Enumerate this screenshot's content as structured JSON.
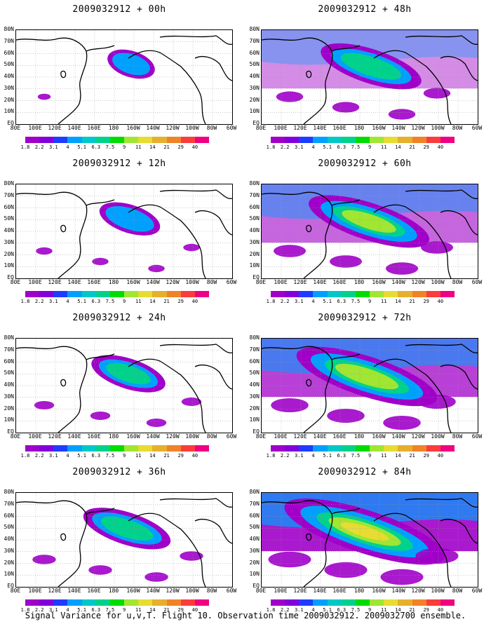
{
  "lat_labels": [
    "80N",
    "70N",
    "60N",
    "50N",
    "40N",
    "30N",
    "20N",
    "10N",
    "EQ"
  ],
  "lon_labels": [
    "80E",
    "100E",
    "120E",
    "140E",
    "160E",
    "180",
    "160W",
    "140W",
    "120W",
    "100W",
    "80W",
    "60W"
  ],
  "colorbar": {
    "levels": [
      "1.8",
      "2.2",
      "3.1",
      "4",
      "5.1",
      "6.3",
      "7.5",
      "9",
      "11",
      "14",
      "21",
      "29",
      "40"
    ],
    "colors": [
      "#a000c8",
      "#8200dc",
      "#1e3cff",
      "#00a0ff",
      "#00c8c8",
      "#00d28c",
      "#00dc00",
      "#a0e632",
      "#e6dc32",
      "#e6af2d",
      "#f08228",
      "#fa3c3c",
      "#f00082"
    ]
  },
  "panels": [
    {
      "title": "2009032912 + 00h",
      "intensity": 0.05
    },
    {
      "title": "2009032912 + 48h",
      "intensity": 0.45
    },
    {
      "title": "2009032912 + 12h",
      "intensity": 0.15
    },
    {
      "title": "2009032912 + 60h",
      "intensity": 0.6
    },
    {
      "title": "2009032912 + 24h",
      "intensity": 0.25
    },
    {
      "title": "2009032912 + 72h",
      "intensity": 0.75
    },
    {
      "title": "2009032912 + 36h",
      "intensity": 0.35
    },
    {
      "title": "2009032912 + 84h",
      "intensity": 0.9
    }
  ],
  "caption": "Signal Variance for u,v,T. Flight 10. Observation time 2009032912. 2009032700 ensemble."
}
